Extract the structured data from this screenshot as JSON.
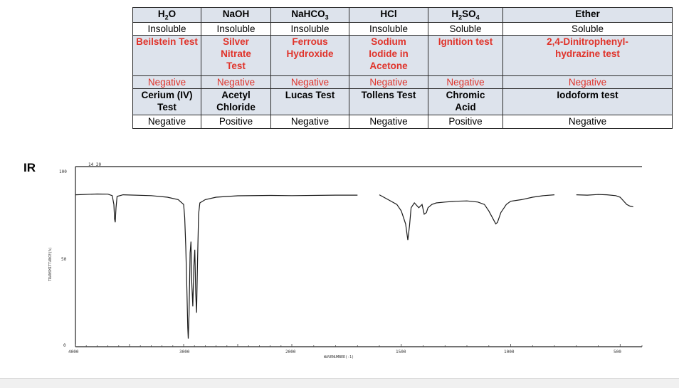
{
  "table": {
    "rows": [
      [
        {
          "t": "H",
          "sub": "2",
          "t2": "O"
        },
        {
          "t": "NaOH"
        },
        {
          "t": "NaHCO",
          "sub": "3"
        },
        {
          "t": "HCl"
        },
        {
          "t": "H",
          "sub": "2",
          "t2": "SO",
          "sub2": "4"
        },
        {
          "t": "Ether"
        }
      ],
      [
        {
          "t": "Insoluble"
        },
        {
          "t": "Insoluble"
        },
        {
          "t": "Insoluble"
        },
        {
          "t": "Insoluble"
        },
        {
          "t": "Soluble"
        },
        {
          "t": "Soluble"
        }
      ],
      [
        {
          "t": "Beilstein Test"
        },
        {
          "t": "Silver Nitrate Test"
        },
        {
          "t": "Ferrous Hydroxide"
        },
        {
          "t": "Sodium Iodide in Acetone"
        },
        {
          "t": "Ignition test"
        },
        {
          "t": "2,4-Dinitrophenyl-hydrazine test"
        }
      ],
      [
        {
          "t": "Negative"
        },
        {
          "t": "Negative"
        },
        {
          "t": "Negative"
        },
        {
          "t": "Negative"
        },
        {
          "t": "Negative"
        },
        {
          "t": "Negative"
        }
      ],
      [
        {
          "t": "Cerium (IV) Test"
        },
        {
          "t": "Acetyl Chloride"
        },
        {
          "t": "Lucas Test"
        },
        {
          "t": "Tollens Test"
        },
        {
          "t": "Chromic Acid"
        },
        {
          "t": "Iodoform test"
        }
      ],
      [
        {
          "t": "Negative"
        },
        {
          "t": "Positive"
        },
        {
          "t": "Negative"
        },
        {
          "t": "Negative"
        },
        {
          "t": "Positive"
        },
        {
          "t": "Negative"
        }
      ]
    ]
  },
  "ir": {
    "label": "IR",
    "y_ticks": [
      "100",
      "50",
      "0"
    ],
    "x_ticks": [
      "4000",
      "3000",
      "2000",
      "1500",
      "1000",
      "500"
    ],
    "x_axis_label": "WAVENUMBER(-1)",
    "y_axis_label": "TRANSMITTANCE(%)",
    "top_mark": "14 20",
    "x_range": [
      4000,
      400
    ],
    "y_range": [
      0,
      100
    ],
    "segments": [
      [
        [
          4000,
          94
        ],
        [
          3800,
          94.5
        ],
        [
          3700,
          94.4
        ],
        [
          3660,
          93.5
        ],
        [
          3645,
          88
        ],
        [
          3638,
          79
        ],
        [
          3632,
          77
        ],
        [
          3625,
          86
        ],
        [
          3615,
          93
        ],
        [
          3560,
          94
        ],
        [
          3300,
          93.5
        ],
        [
          3150,
          92.5
        ],
        [
          3050,
          91
        ],
        [
          3000,
          88
        ],
        [
          2990,
          80
        ],
        [
          2980,
          62
        ],
        [
          2970,
          35
        ],
        [
          2962,
          12
        ],
        [
          2957,
          5
        ],
        [
          2950,
          20
        ],
        [
          2940,
          58
        ],
        [
          2932,
          65
        ],
        [
          2925,
          40
        ],
        [
          2915,
          25
        ],
        [
          2905,
          50
        ],
        [
          2897,
          60
        ],
        [
          2888,
          33
        ],
        [
          2880,
          21
        ],
        [
          2872,
          52
        ],
        [
          2862,
          82
        ],
        [
          2850,
          89
        ],
        [
          2800,
          91
        ],
        [
          2700,
          92.5
        ],
        [
          2500,
          93.4
        ],
        [
          2200,
          93.6
        ],
        [
          2000,
          93.5
        ],
        [
          1800,
          93.8
        ],
        [
          1700,
          93.8
        ]
      ],
      [
        [
          1600,
          94
        ],
        [
          1560,
          91
        ],
        [
          1520,
          88
        ],
        [
          1500,
          84
        ],
        [
          1480,
          76
        ],
        [
          1470,
          66
        ],
        [
          1462,
          75
        ],
        [
          1455,
          86
        ],
        [
          1440,
          89
        ],
        [
          1420,
          86
        ],
        [
          1405,
          88
        ],
        [
          1395,
          82
        ],
        [
          1385,
          83
        ],
        [
          1378,
          86
        ],
        [
          1360,
          88
        ],
        [
          1340,
          89
        ],
        [
          1300,
          89.5
        ],
        [
          1250,
          90
        ],
        [
          1200,
          90.2
        ],
        [
          1150,
          89.5
        ],
        [
          1120,
          88
        ],
        [
          1100,
          84
        ],
        [
          1080,
          79
        ],
        [
          1068,
          76
        ],
        [
          1060,
          77
        ],
        [
          1045,
          83
        ],
        [
          1020,
          88
        ],
        [
          1000,
          90
        ],
        [
          950,
          91
        ],
        [
          900,
          92.5
        ],
        [
          850,
          93.5
        ],
        [
          800,
          94
        ]
      ],
      [
        [
          700,
          94
        ],
        [
          650,
          93.8
        ],
        [
          600,
          94.2
        ],
        [
          560,
          94
        ],
        [
          520,
          93.5
        ],
        [
          500,
          92.5
        ],
        [
          470,
          88
        ],
        [
          455,
          87
        ],
        [
          440,
          86.5
        ]
      ]
    ]
  }
}
